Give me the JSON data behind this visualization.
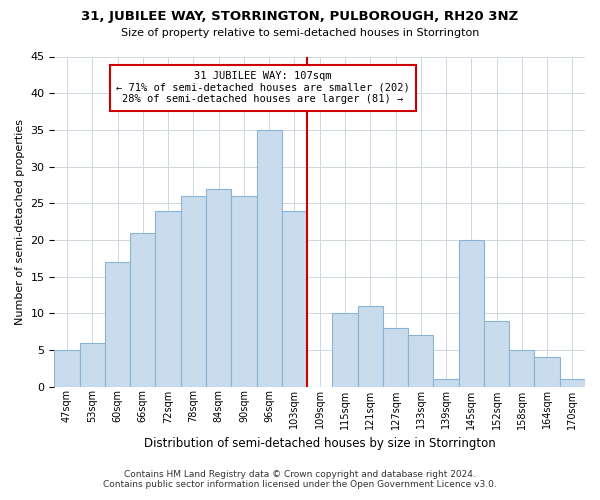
{
  "title": "31, JUBILEE WAY, STORRINGTON, PULBOROUGH, RH20 3NZ",
  "subtitle": "Size of property relative to semi-detached houses in Storrington",
  "xlabel": "Distribution of semi-detached houses by size in Storrington",
  "ylabel": "Number of semi-detached properties",
  "categories": [
    "47sqm",
    "53sqm",
    "60sqm",
    "66sqm",
    "72sqm",
    "78sqm",
    "84sqm",
    "90sqm",
    "96sqm",
    "103sqm",
    "109sqm",
    "115sqm",
    "121sqm",
    "127sqm",
    "133sqm",
    "139sqm",
    "145sqm",
    "152sqm",
    "158sqm",
    "164sqm",
    "170sqm"
  ],
  "values": [
    5,
    6,
    17,
    21,
    24,
    26,
    27,
    26,
    35,
    24,
    0,
    10,
    11,
    8,
    7,
    1,
    20,
    9,
    5,
    4,
    1
  ],
  "bar_color": "#c9dced",
  "bar_edge_color": "#8ab4d4",
  "marker_line_color": "#cc0000",
  "annotation_line1": "31 JUBILEE WAY: 107sqm",
  "annotation_line2": "← 71% of semi-detached houses are smaller (202)",
  "annotation_line3": "28% of semi-detached houses are larger (81) →",
  "annotation_box_edge": "#cc0000",
  "ylim": [
    0,
    45
  ],
  "yticks": [
    0,
    5,
    10,
    15,
    20,
    25,
    30,
    35,
    40,
    45
  ],
  "footer1": "Contains HM Land Registry data © Crown copyright and database right 2024.",
  "footer2": "Contains public sector information licensed under the Open Government Licence v3.0.",
  "background_color": "#ffffff",
  "grid_color": "#d0d8e0"
}
